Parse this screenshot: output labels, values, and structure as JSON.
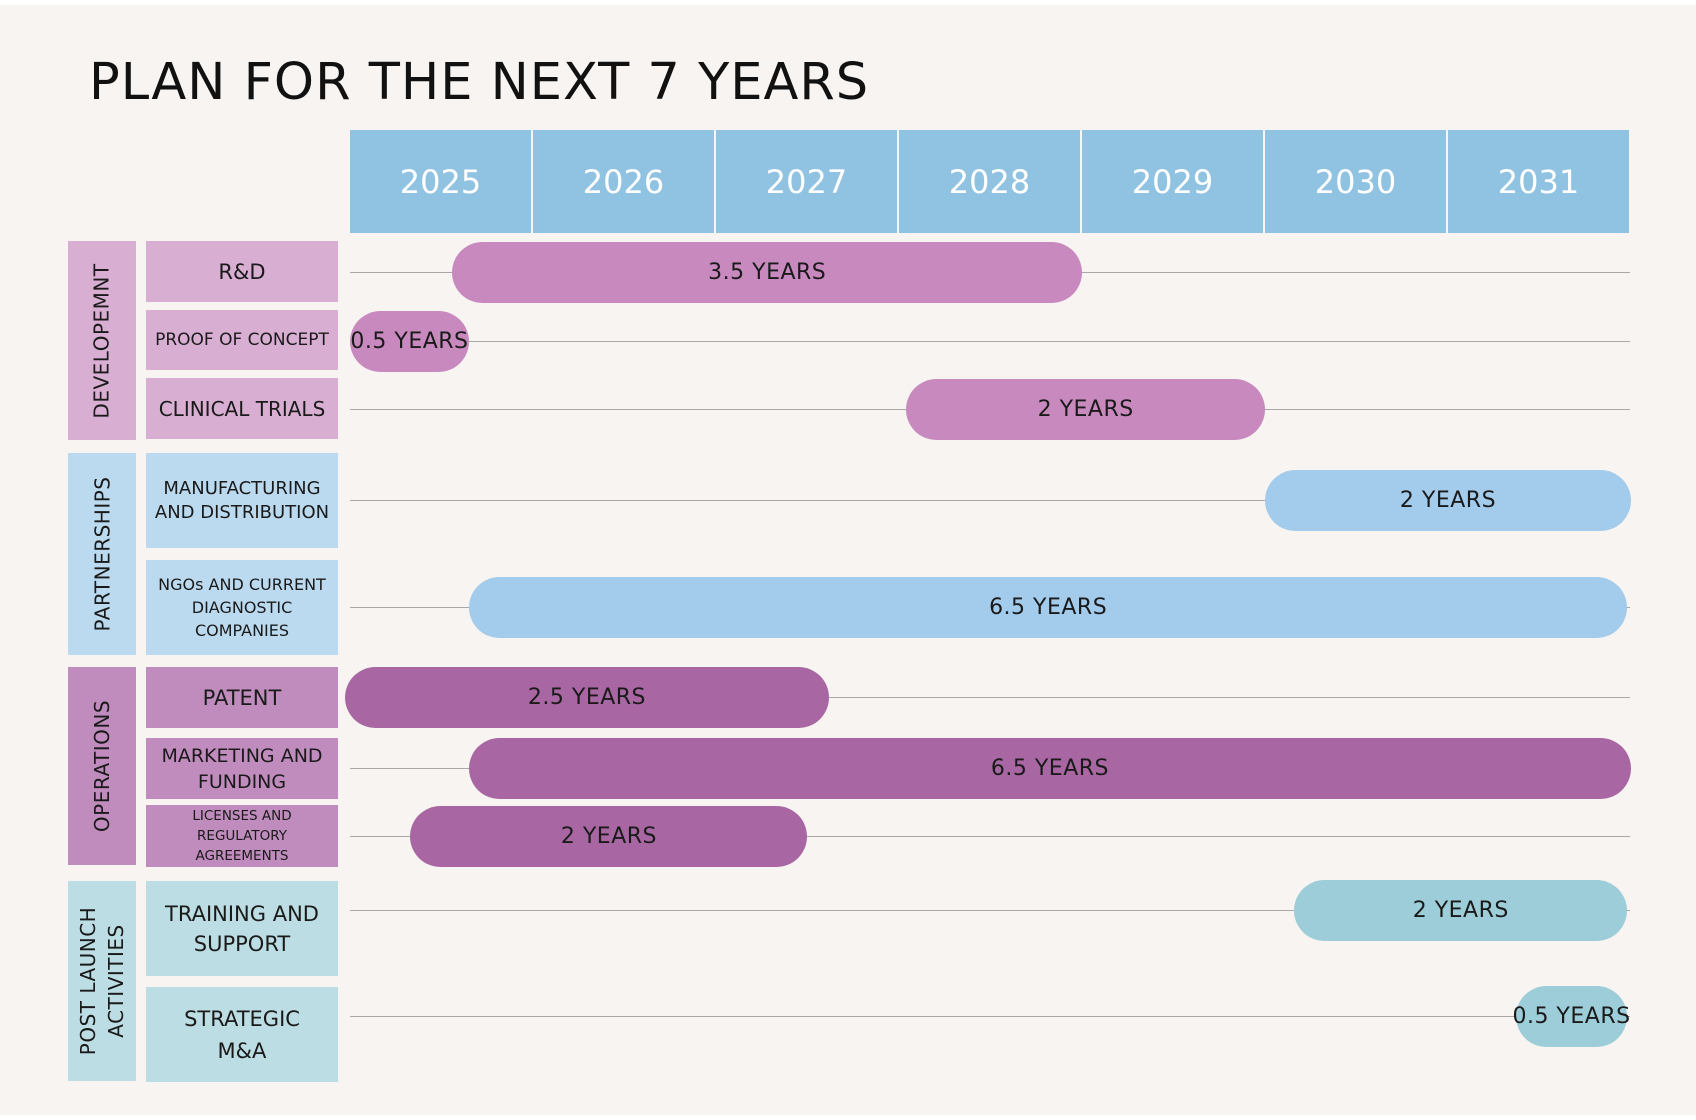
{
  "title": "PLAN FOR THE NEXT 7 YEARS",
  "years": [
    "2025",
    "2026",
    "2027",
    "2028",
    "2029",
    "2030",
    "2031"
  ],
  "groups": [
    {
      "label": "DEVELOPEMNT",
      "color": "#d9aed3"
    },
    {
      "label": "PARTNERSHIPS",
      "color": "#bcdaef"
    },
    {
      "label": "OPERATIONS",
      "color": "#c08cbd"
    },
    {
      "label": "POST LAUNCH\nACTIVITIES",
      "color": "#bcdde3"
    }
  ],
  "tasks": [
    {
      "category": "R&D",
      "group": 0,
      "duration_label": "3.5 YEARS",
      "start_year": 2025.56,
      "end_year": 2029.0,
      "bar_color": "#c889bf"
    },
    {
      "category": "PROOF OF CONCEPT",
      "group": 0,
      "duration_label": "0.5 YEARS",
      "start_year": 2025.0,
      "end_year": 2025.65,
      "bar_color": "#c889bf"
    },
    {
      "category": "CLINICAL TRIALS",
      "group": 0,
      "duration_label": "2 YEARS",
      "start_year": 2028.04,
      "end_year": 2030.0,
      "bar_color": "#c889bf"
    },
    {
      "category": "MANUFACTURING\nAND DISTRIBUTION",
      "group": 1,
      "duration_label": "2 YEARS",
      "start_year": 2030.0,
      "end_year": 2032.0,
      "bar_color": "#a3cbec"
    },
    {
      "category": "NGOs AND CURRENT\nDIAGNOSTIC\nCOMPANIES",
      "group": 1,
      "duration_label": "6.5 YEARS",
      "start_year": 2025.65,
      "end_year": 2031.98,
      "bar_color": "#a3cbec"
    },
    {
      "category": "PATENT",
      "group": 2,
      "duration_label": "2.5 YEARS",
      "start_year": 2024.97,
      "end_year": 2027.62,
      "bar_color": "#a867a3"
    },
    {
      "category": "MARKETING AND\nFUNDING",
      "group": 2,
      "duration_label": "6.5 YEARS",
      "start_year": 2025.65,
      "end_year": 2032.0,
      "bar_color": "#a867a3"
    },
    {
      "category": "LICENSES AND\nREGULATORY\nAGREEMENTS",
      "group": 2,
      "duration_label": "2 YEARS",
      "start_year": 2025.33,
      "end_year": 2027.5,
      "bar_color": "#a867a3"
    },
    {
      "category": "TRAINING AND\nSUPPORT",
      "group": 3,
      "duration_label": "2 YEARS",
      "start_year": 2030.16,
      "end_year": 2031.98,
      "bar_color": "#9dcdd8"
    },
    {
      "category": "STRATEGIC\nM&A",
      "group": 3,
      "duration_label": "0.5 YEARS",
      "start_year": 2031.37,
      "end_year": 2031.98,
      "bar_color": "#9dcdd8"
    }
  ]
}
